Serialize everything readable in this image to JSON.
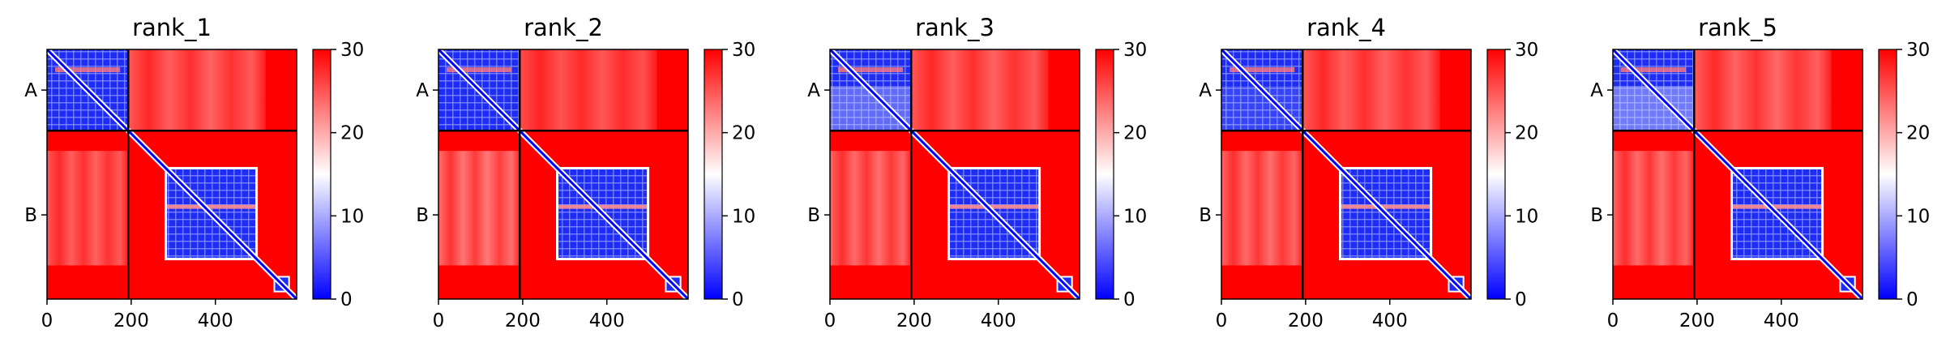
{
  "chart_data": [
    {
      "type": "heatmap",
      "title": "rank_1",
      "x_ticks": [
        0,
        200,
        400
      ],
      "xlim": [
        0,
        593
      ],
      "chain_boundary": 193,
      "y_tick_labels": [
        "A",
        "B"
      ],
      "colorbar": {
        "ticks": [
          0,
          10,
          20,
          30
        ],
        "range": [
          0,
          30
        ],
        "colormap": "bwr"
      },
      "blocks": {
        "A_intra": 1.0,
        "B_domain": 1.0,
        "B_A": 0.8,
        "A_B": 0.8
      }
    },
    {
      "type": "heatmap",
      "title": "rank_2",
      "x_ticks": [
        0,
        200,
        400
      ],
      "xlim": [
        0,
        593
      ],
      "chain_boundary": 193,
      "y_tick_labels": [
        "A",
        "B"
      ],
      "colorbar": {
        "ticks": [
          0,
          10,
          20,
          30
        ],
        "range": [
          0,
          30
        ],
        "colormap": "bwr"
      },
      "blocks": {
        "A_intra": 1.0,
        "B_domain": 1.0,
        "B_A": 1.0,
        "A_B": 0.7
      }
    },
    {
      "type": "heatmap",
      "title": "rank_3",
      "x_ticks": [
        0,
        200,
        400
      ],
      "xlim": [
        0,
        593
      ],
      "chain_boundary": 193,
      "y_tick_labels": [
        "A",
        "B"
      ],
      "colorbar": {
        "ticks": [
          0,
          10,
          20,
          30
        ],
        "range": [
          0,
          30
        ],
        "colormap": "bwr"
      },
      "blocks": {
        "A_intra": 0.6,
        "B_domain": 1.0,
        "B_A": 0.9,
        "A_B": 0.8
      }
    },
    {
      "type": "heatmap",
      "title": "rank_4",
      "x_ticks": [
        0,
        200,
        400
      ],
      "xlim": [
        0,
        593
      ],
      "chain_boundary": 193,
      "y_tick_labels": [
        "A",
        "B"
      ],
      "colorbar": {
        "ticks": [
          0,
          10,
          20,
          30
        ],
        "range": [
          0,
          30
        ],
        "colormap": "bwr"
      },
      "blocks": {
        "A_intra": 0.85,
        "B_domain": 1.0,
        "B_A": 0.9,
        "A_B": 0.8
      }
    },
    {
      "type": "heatmap",
      "title": "rank_5",
      "x_ticks": [
        0,
        200,
        400
      ],
      "xlim": [
        0,
        593
      ],
      "chain_boundary": 193,
      "y_tick_labels": [
        "A",
        "B"
      ],
      "colorbar": {
        "ticks": [
          0,
          10,
          20,
          30
        ],
        "range": [
          0,
          30
        ],
        "colormap": "bwr"
      },
      "blocks": {
        "A_intra": 0.5,
        "B_domain": 1.0,
        "B_A": 0.9,
        "A_B": 0.85
      }
    }
  ],
  "colors": {
    "low": "#0000ff",
    "mid": "#ffffff",
    "high": "#ff0000"
  }
}
